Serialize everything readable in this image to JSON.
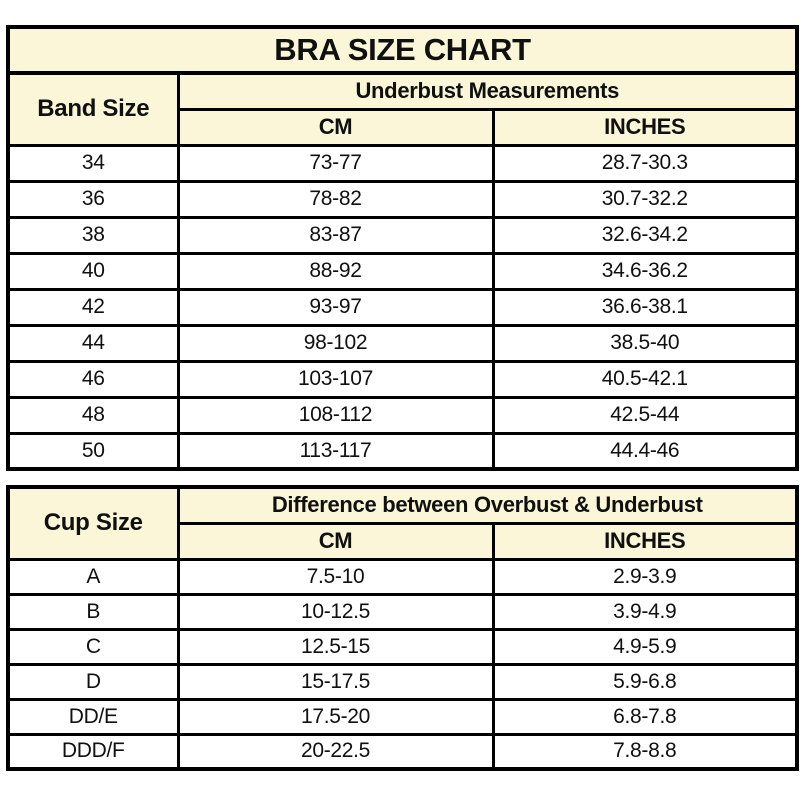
{
  "title": "BRA SIZE CHART",
  "colors": {
    "header_bg": "#FBF6D8",
    "border": "#000000",
    "text": "#101010",
    "page_bg": "#FFFFFF"
  },
  "band_table": {
    "corner_header": "Band Size",
    "group_header": "Underbust Measurements",
    "cm_header": "CM",
    "inches_header": "INCHES",
    "rows": [
      [
        "34",
        "73-77",
        "28.7-30.3"
      ],
      [
        "36",
        "78-82",
        "30.7-32.2"
      ],
      [
        "38",
        "83-87",
        "32.6-34.2"
      ],
      [
        "40",
        "88-92",
        "34.6-36.2"
      ],
      [
        "42",
        "93-97",
        "36.6-38.1"
      ],
      [
        "44",
        "98-102",
        "38.5-40"
      ],
      [
        "46",
        "103-107",
        "40.5-42.1"
      ],
      [
        "48",
        "108-112",
        "42.5-44"
      ],
      [
        "50",
        "113-117",
        "44.4-46"
      ]
    ]
  },
  "cup_table": {
    "corner_header": "Cup Size",
    "group_header": "Difference between Overbust & Underbust",
    "cm_header": "CM",
    "inches_header": "INCHES",
    "rows": [
      [
        "A",
        "7.5-10",
        "2.9-3.9"
      ],
      [
        "B",
        "10-12.5",
        "3.9-4.9"
      ],
      [
        "C",
        "12.5-15",
        "4.9-5.9"
      ],
      [
        "D",
        "15-17.5",
        "5.9-6.8"
      ],
      [
        "DD/E",
        "17.5-20",
        "6.8-7.8"
      ],
      [
        "DDD/F",
        "20-22.5",
        "7.8-8.8"
      ]
    ]
  },
  "chart_data": [
    {
      "type": "table",
      "title": "BRA SIZE CHART",
      "group_header": "Underbust Measurements",
      "columns": [
        "Band Size",
        "CM",
        "INCHES"
      ],
      "rows": [
        [
          "34",
          "73-77",
          "28.7-30.3"
        ],
        [
          "36",
          "78-82",
          "30.7-32.2"
        ],
        [
          "38",
          "83-87",
          "32.6-34.2"
        ],
        [
          "40",
          "88-92",
          "34.6-36.2"
        ],
        [
          "42",
          "93-97",
          "36.6-38.1"
        ],
        [
          "44",
          "98-102",
          "38.5-40"
        ],
        [
          "46",
          "103-107",
          "40.5-42.1"
        ],
        [
          "48",
          "108-112",
          "42.5-44"
        ],
        [
          "50",
          "113-117",
          "44.4-46"
        ]
      ]
    },
    {
      "type": "table",
      "title": "",
      "group_header": "Difference between Overbust & Underbust",
      "columns": [
        "Cup Size",
        "CM",
        "INCHES"
      ],
      "rows": [
        [
          "A",
          "7.5-10",
          "2.9-3.9"
        ],
        [
          "B",
          "10-12.5",
          "3.9-4.9"
        ],
        [
          "C",
          "12.5-15",
          "4.9-5.9"
        ],
        [
          "D",
          "15-17.5",
          "5.9-6.8"
        ],
        [
          "DD/E",
          "17.5-20",
          "6.8-7.8"
        ],
        [
          "DDD/F",
          "20-22.5",
          "7.8-8.8"
        ]
      ]
    }
  ]
}
